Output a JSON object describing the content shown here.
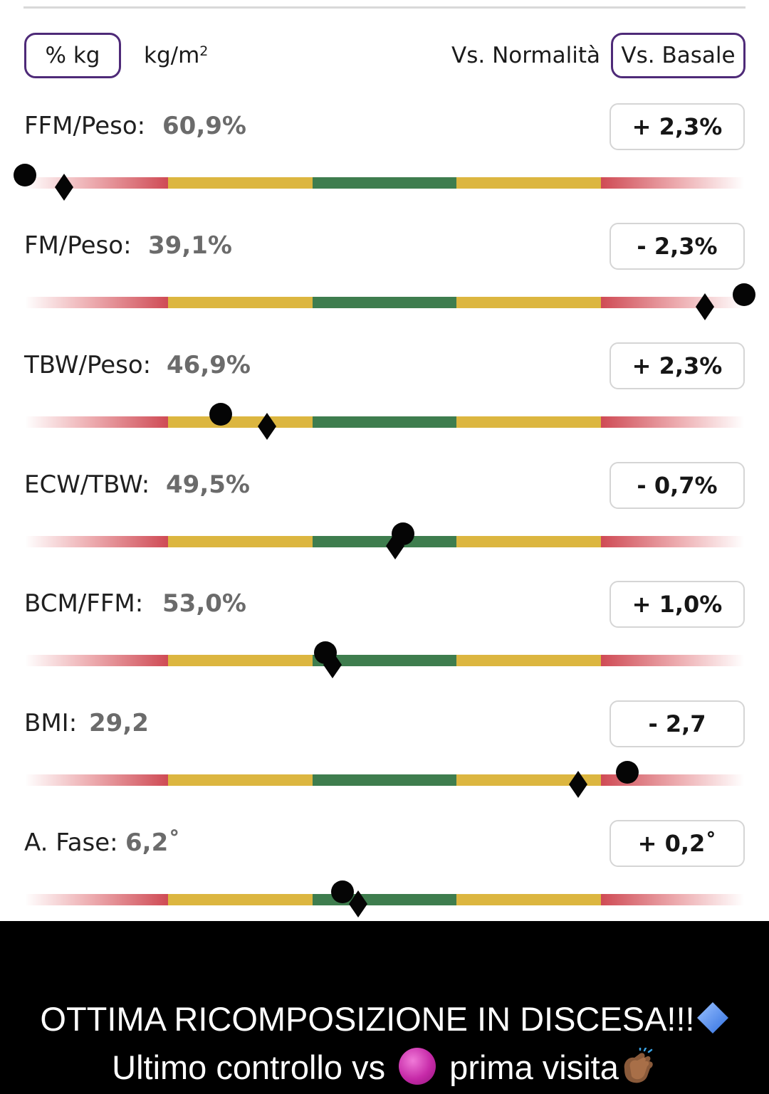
{
  "toolbar": {
    "percent_kg": "% kg",
    "kg_m2_base": "kg/m",
    "kg_m2_sup": "2",
    "vs_normalita": "Vs. Normalità",
    "vs_basale": "Vs. Basale"
  },
  "metrics": [
    {
      "label": "FFM/Peso:",
      "value": "60,9%",
      "delta": "+ 2,3%",
      "current_level": 0.0,
      "previous_level": 0.054
    },
    {
      "label": "FM/Peso:",
      "value": "39,1%",
      "delta": "- 2,3%",
      "current_level": 1.0,
      "previous_level": 0.946
    },
    {
      "label": "TBW/Peso:",
      "value": "46,9%",
      "delta": "+ 2,3%",
      "current_level": 0.272,
      "previous_level": 0.337
    },
    {
      "label": "ECW/TBW:",
      "value": "49,5%",
      "delta": "- 0,7%",
      "current_level": 0.526,
      "previous_level": 0.515
    },
    {
      "label": "BCM/FFM:",
      "value": "53,0%",
      "delta": "+ 1,0%",
      "current_level": 0.418,
      "previous_level": 0.428
    },
    {
      "label": "BMI:",
      "value": "29,2",
      "delta": "- 2,7",
      "current_level": 0.838,
      "previous_level": 0.769
    },
    {
      "label": "A. Fase:",
      "value": "6,2˚",
      "delta": "+ 0,2˚",
      "current_level": 0.442,
      "previous_level": 0.463
    }
  ],
  "scale_colors": {
    "red": "#cf4b55",
    "yellow": "#dcb640",
    "green": "#3e7d4e",
    "accent": "#4e2a78"
  },
  "caption": {
    "line1": "OTTIMA RICOMPOSIZIONE IN DISCESA!!!",
    "line1_icon": "blue-diamond-icon",
    "line2_before": "Ultimo controllo vs ",
    "line2_icon": "purple-circle-icon",
    "line2_after": " prima visita",
    "line2_end_icon": "clapping-hands-icon"
  }
}
